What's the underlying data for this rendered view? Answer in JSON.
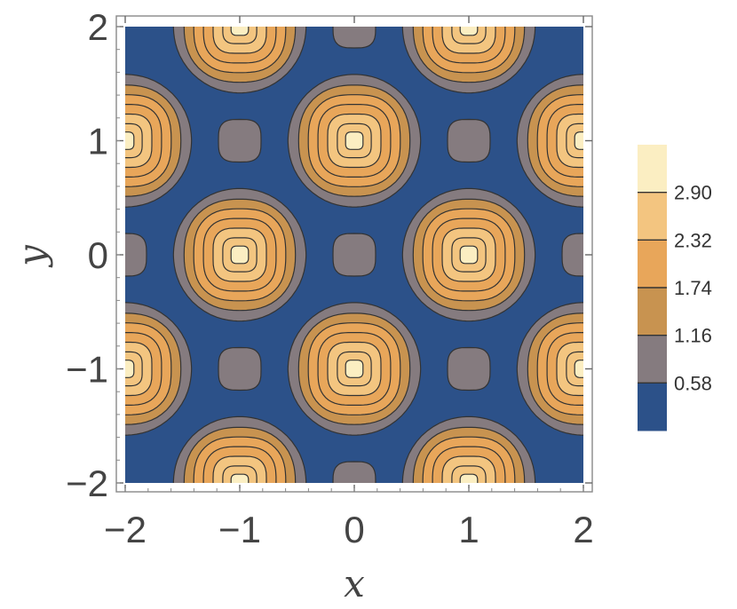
{
  "chart_data": {
    "type": "contour",
    "xlabel": "x",
    "ylabel": "y",
    "xlim": [
      -2,
      2
    ],
    "ylim": [
      -2,
      2
    ],
    "x_ticks": [
      -2,
      -1,
      0,
      1,
      2
    ],
    "y_ticks": [
      -2,
      -1,
      0,
      1,
      2
    ],
    "x_tick_labels": [
      "−2",
      "−1",
      "0",
      "1",
      "2"
    ],
    "y_tick_labels": [
      "−2",
      "−1",
      "0",
      "1",
      "2"
    ],
    "contour_levels": [
      0.58,
      1.16,
      1.74,
      2.32,
      2.9
    ],
    "colorbar": {
      "labels": [
        "2.90",
        "2.32",
        "1.74",
        "1.16",
        "0.58"
      ],
      "colors": [
        "#2c5189",
        "#857b7f",
        "#c89350",
        "#e8a65a",
        "#f3c580",
        "#fbeec2"
      ]
    },
    "maxima": [
      {
        "x": -1,
        "y": 2
      },
      {
        "x": 1,
        "y": 2
      },
      {
        "x": -2,
        "y": 1
      },
      {
        "x": 0,
        "y": 1
      },
      {
        "x": 2,
        "y": 1
      },
      {
        "x": -1,
        "y": 0
      },
      {
        "x": 1,
        "y": 0
      },
      {
        "x": -2,
        "y": -1
      },
      {
        "x": 0,
        "y": -1
      },
      {
        "x": 2,
        "y": -1
      },
      {
        "x": -1,
        "y": -2
      },
      {
        "x": 1,
        "y": -2
      }
    ],
    "secondary_maxima": [
      {
        "x": 0,
        "y": 2
      },
      {
        "x": -1,
        "y": 1
      },
      {
        "x": 1,
        "y": 1
      },
      {
        "x": -2,
        "y": 0
      },
      {
        "x": 0,
        "y": 0
      },
      {
        "x": 2,
        "y": 0
      },
      {
        "x": -1,
        "y": -1
      },
      {
        "x": 1,
        "y": -1
      },
      {
        "x": 0,
        "y": -2
      }
    ]
  }
}
